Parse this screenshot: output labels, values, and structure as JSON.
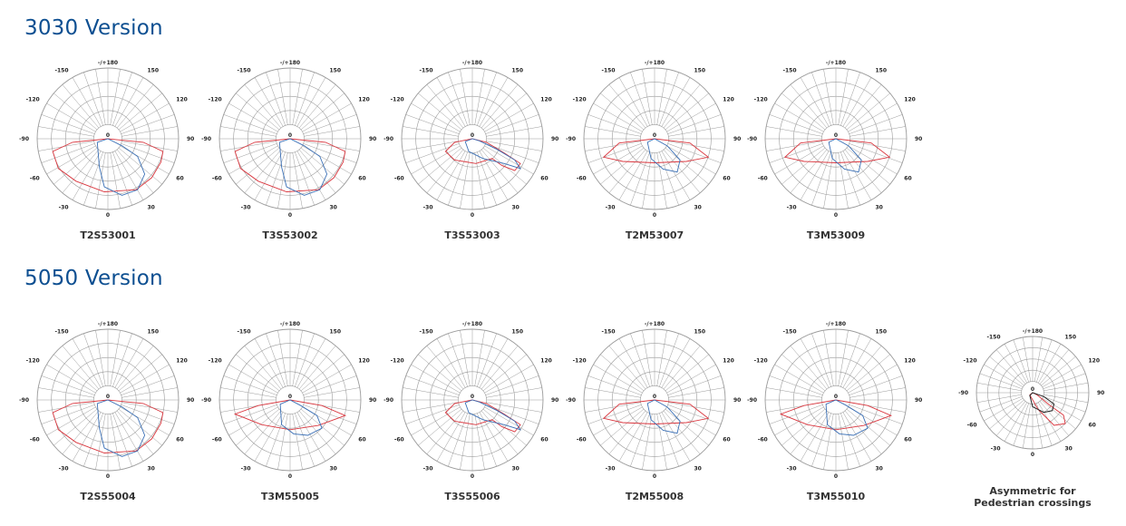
{
  "sections": [
    {
      "title": "3030 Version"
    },
    {
      "title": "5050 Version"
    }
  ],
  "axis_labels": {
    "top": "-/+180",
    "bottom": "0",
    "center": "0",
    "left": [
      "-150",
      "-120",
      "-90",
      "-60",
      "-30"
    ],
    "right": [
      "150",
      "120",
      "90",
      "60",
      "30"
    ]
  },
  "colors": {
    "grid": "#9a9a9a",
    "c0": "#d9363e",
    "c90": "#3a6fb5",
    "asym": "#222222",
    "title": "#0d4f91"
  },
  "diagrams": [
    {
      "id": "T2S53001",
      "caption": "T2S53001",
      "type": "A"
    },
    {
      "id": "T3S53002",
      "caption": "T3S53002",
      "type": "A"
    },
    {
      "id": "T3S53003",
      "caption": "T3S53003",
      "type": "C"
    },
    {
      "id": "T2M53007",
      "caption": "T2M53007",
      "type": "D"
    },
    {
      "id": "T3M53009",
      "caption": "T3M53009",
      "type": "D"
    },
    {
      "id": "T2S55004",
      "caption": "T2S55004",
      "type": "A"
    },
    {
      "id": "T3M55005",
      "caption": "T3M55005",
      "type": "B"
    },
    {
      "id": "T3S55006",
      "caption": "T3S55006",
      "type": "C"
    },
    {
      "id": "T2M55008",
      "caption": "T2M55008",
      "type": "D"
    },
    {
      "id": "T3M55010",
      "caption": "T3M55010",
      "type": "B"
    },
    {
      "id": "asymmetric",
      "caption_lines": [
        "Asymmetric for",
        "Pedestrian crossings"
      ],
      "type": "E"
    }
  ]
}
